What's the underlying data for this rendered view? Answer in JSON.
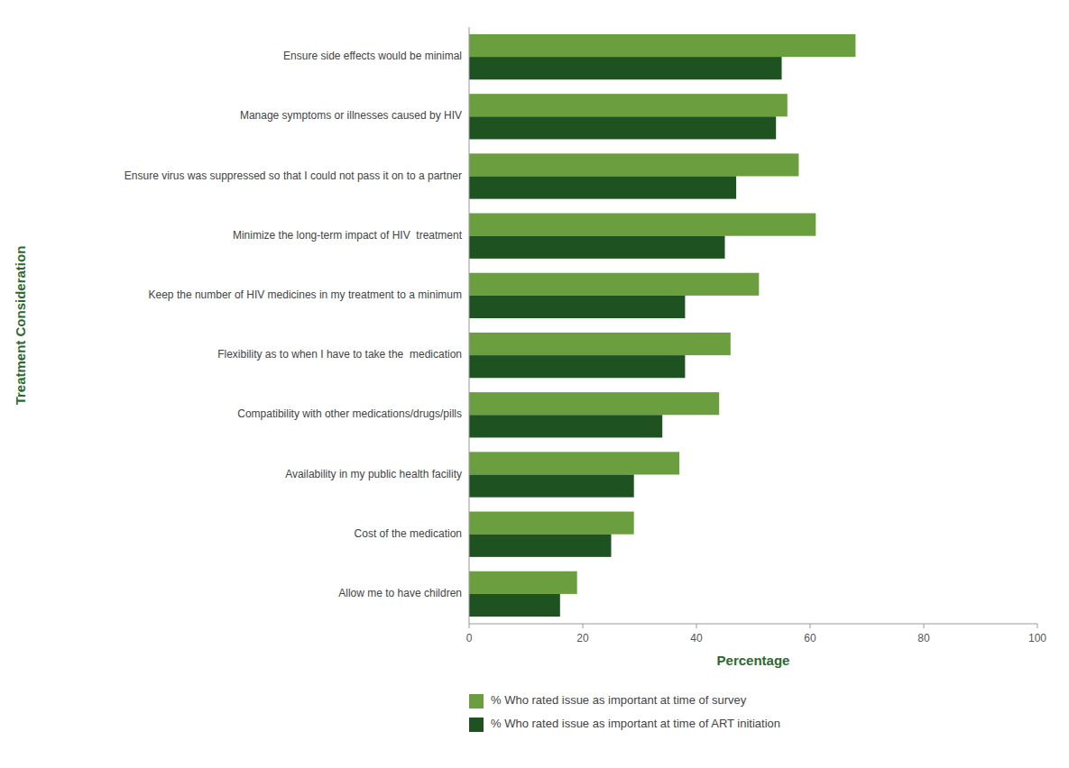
{
  "chart_data": {
    "type": "bar",
    "orientation": "horizontal",
    "categories": [
      "Ensure side effects would be minimal",
      "Manage symptoms or illnesses caused by HIV",
      "Ensure virus was suppressed so that I could not pass it on to a partner",
      "Minimize the long-term impact of HIV  treatment",
      "Keep the number of HIV medicines in my treatment to a minimum",
      "Flexibility as to when I have to take the  medication",
      "Compatibility with other medications/drugs/pills",
      "Availability in my public health facility",
      "Cost of the medication",
      "Allow me to have children"
    ],
    "series": [
      {
        "name": "% Who rated issue as important at time of survey",
        "color": "#6b9e3e",
        "values": [
          68,
          56,
          58,
          61,
          51,
          46,
          44,
          37,
          29,
          19
        ]
      },
      {
        "name": "% Who rated issue as important at time of ART initiation",
        "color": "#1e5220",
        "values": [
          55,
          54,
          47,
          45,
          38,
          38,
          34,
          29,
          25,
          16
        ]
      }
    ],
    "xlabel": "Percentage",
    "ylabel": "Treatment Consideration",
    "xlim": [
      0,
      100
    ],
    "xticks": [
      0,
      20,
      40,
      60,
      80,
      100
    ],
    "grid": false,
    "legend": "bottom"
  }
}
